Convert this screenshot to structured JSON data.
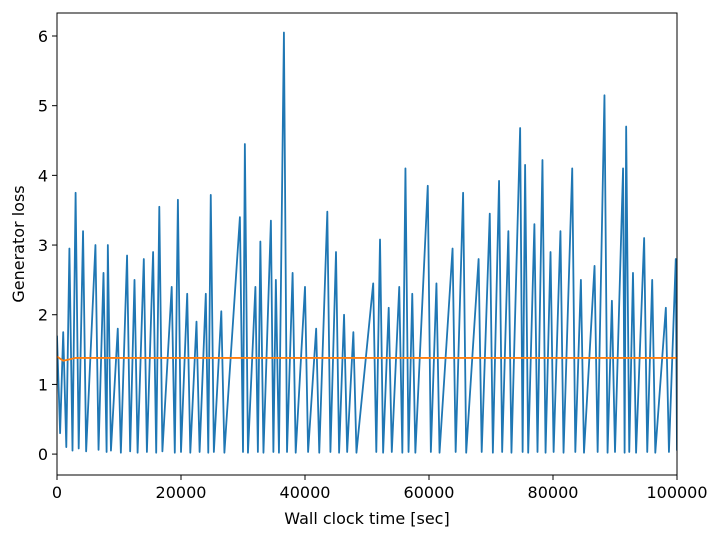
{
  "chart_data": {
    "type": "line",
    "xlabel": "Wall clock time [sec]",
    "ylabel": "Generator loss",
    "xlim": [
      0,
      100000
    ],
    "ylim": [
      -0.3,
      6.33
    ],
    "xticks": [
      0,
      20000,
      40000,
      60000,
      80000,
      100000
    ],
    "yticks": [
      0,
      1,
      2,
      3,
      4,
      5,
      6
    ],
    "grid": false,
    "series": [
      {
        "color": "#1f77b4",
        "x": [
          0,
          500,
          1000,
          1500,
          2000,
          2500,
          3000,
          3500,
          4200,
          4700,
          6200,
          6700,
          7500,
          8000,
          8200,
          8700,
          9800,
          10300,
          11300,
          11800,
          12500,
          13000,
          14000,
          14500,
          15500,
          16000,
          16500,
          17000,
          18500,
          19000,
          19500,
          20000,
          21000,
          21500,
          22500,
          23000,
          24000,
          24400,
          24800,
          25300,
          26500,
          27000,
          29500,
          30000,
          30300,
          30800,
          32000,
          32400,
          32800,
          33300,
          34500,
          34900,
          35300,
          35800,
          36600,
          37100,
          38000,
          38500,
          40000,
          40500,
          41800,
          42300,
          43600,
          44100,
          45000,
          45500,
          46300,
          46800,
          47800,
          48300,
          51000,
          51500,
          52100,
          52600,
          53500,
          54000,
          55200,
          55700,
          56200,
          56700,
          57300,
          57800,
          59800,
          60300,
          61200,
          61700,
          63800,
          64300,
          65500,
          66000,
          68000,
          68500,
          69800,
          70300,
          71300,
          71800,
          72800,
          73300,
          74700,
          75100,
          75500,
          76000,
          77000,
          77500,
          78300,
          78800,
          79600,
          80100,
          81200,
          81700,
          83100,
          83600,
          84500,
          85000,
          86700,
          87200,
          88300,
          88800,
          89500,
          90000,
          91300,
          91550,
          91800,
          92300,
          92900,
          93400,
          94700,
          95200,
          96000,
          96500,
          98200,
          98700,
          99800,
          100000
        ],
        "values": [
          1.7,
          0.3,
          1.75,
          0.1,
          2.95,
          0.05,
          3.75,
          0.08,
          3.2,
          0.04,
          3.0,
          0.06,
          2.6,
          0.03,
          3.0,
          0.05,
          1.8,
          0.02,
          2.85,
          0.04,
          2.5,
          0.02,
          2.8,
          0.03,
          2.9,
          0.02,
          3.55,
          0.04,
          2.4,
          0.02,
          3.65,
          0.03,
          2.3,
          0.02,
          1.9,
          0.03,
          2.3,
          0.02,
          3.72,
          0.03,
          2.05,
          0.02,
          3.4,
          0.03,
          4.45,
          0.02,
          2.4,
          0.03,
          3.05,
          0.02,
          3.35,
          0.03,
          2.5,
          0.02,
          6.05,
          0.03,
          2.6,
          0.02,
          2.4,
          0.03,
          1.8,
          0.02,
          3.48,
          0.03,
          2.9,
          0.02,
          2.0,
          0.03,
          1.75,
          0.02,
          2.45,
          0.03,
          3.08,
          0.02,
          2.1,
          0.03,
          2.4,
          0.02,
          4.1,
          0.03,
          2.3,
          0.02,
          3.85,
          0.03,
          2.45,
          0.02,
          2.95,
          0.03,
          3.75,
          0.02,
          2.8,
          0.03,
          3.45,
          0.02,
          3.92,
          0.03,
          3.2,
          0.02,
          4.68,
          0.03,
          4.15,
          0.02,
          3.3,
          0.03,
          4.22,
          0.02,
          2.9,
          0.03,
          3.2,
          0.02,
          4.1,
          0.03,
          2.5,
          0.02,
          2.7,
          0.03,
          5.15,
          0.02,
          2.2,
          0.03,
          4.1,
          0.02,
          4.7,
          0.03,
          2.6,
          0.02,
          3.1,
          0.03,
          2.5,
          0.02,
          2.1,
          0.03,
          2.8,
          0.05
        ]
      },
      {
        "color": "#ff7f0e",
        "x": [
          0,
          1000,
          2000,
          3000,
          100000
        ],
        "values": [
          1.4,
          1.34,
          1.36,
          1.38,
          1.38
        ]
      }
    ]
  }
}
